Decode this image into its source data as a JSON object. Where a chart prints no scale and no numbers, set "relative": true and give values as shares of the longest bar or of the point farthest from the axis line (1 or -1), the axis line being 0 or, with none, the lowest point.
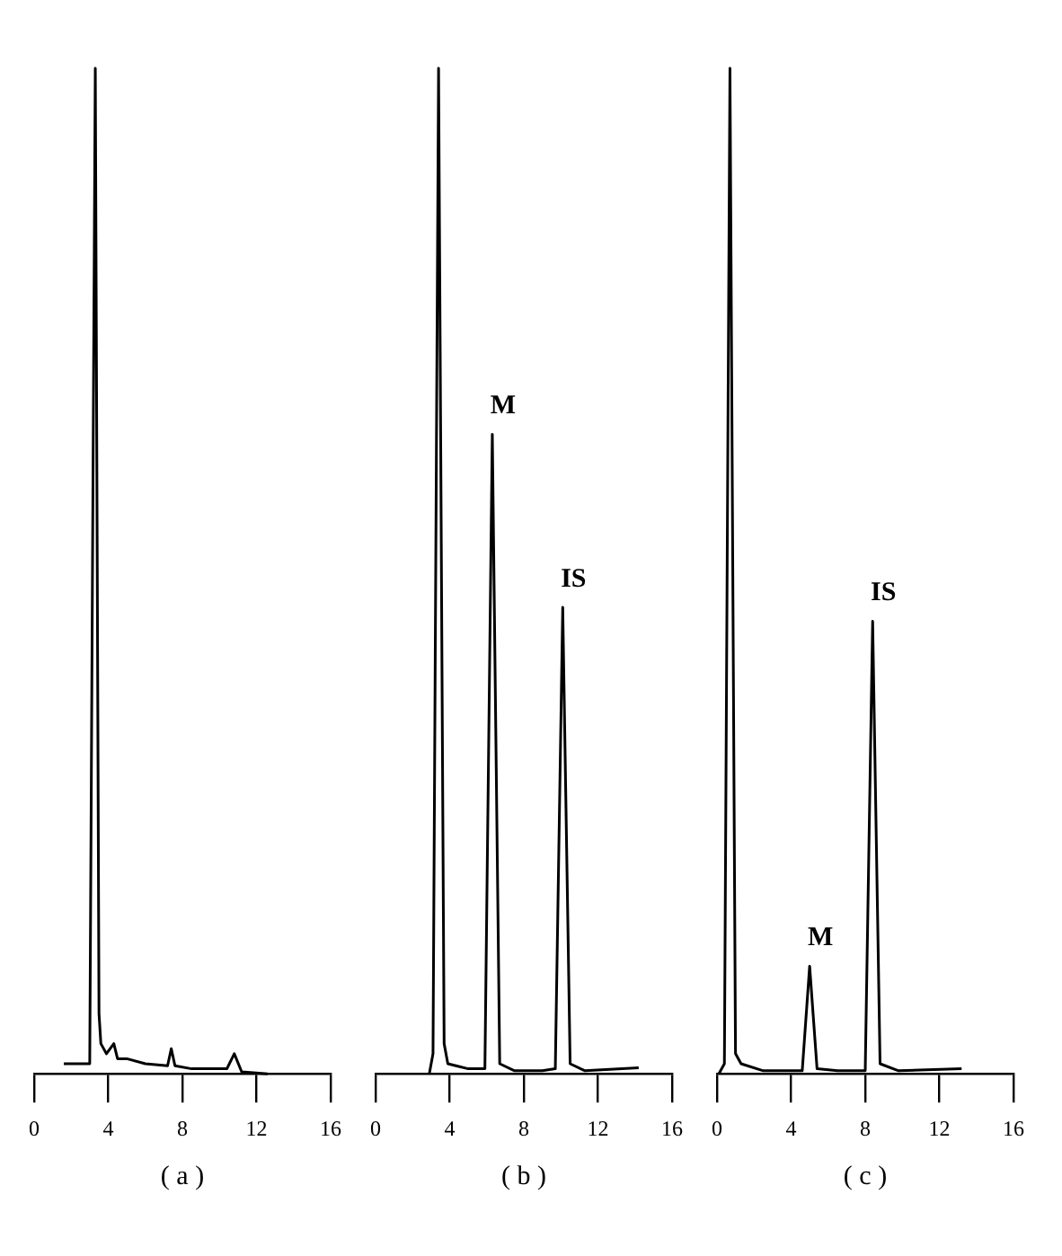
{
  "chart_data": [
    {
      "type": "line",
      "relative": true,
      "xlabel": "( a )",
      "xlim": [
        0,
        16
      ],
      "xticks": [
        0,
        4,
        8,
        12,
        16
      ],
      "grid": false,
      "legend": false,
      "marker": "none",
      "series": [
        {
          "color": "#000000",
          "x": [
            1.6,
            3.0,
            3.3,
            3.5,
            3.6,
            3.9,
            4.3,
            4.5,
            5.0,
            6.0,
            7.2,
            7.4,
            7.6,
            8.5,
            10.4,
            10.8,
            11.2,
            12.6
          ],
          "values": [
            0.01,
            0.01,
            1,
            0.06,
            0.03,
            0.02,
            0.03,
            0.015,
            0.015,
            0.01,
            0.008,
            0.025,
            0.008,
            0.005,
            0.005,
            0.02,
            0.002,
            0
          ]
        }
      ]
    },
    {
      "type": "line",
      "relative": true,
      "xlabel": "( b )",
      "xlim": [
        0,
        16
      ],
      "xticks": [
        0,
        4,
        8,
        12,
        16
      ],
      "grid": false,
      "legend": false,
      "marker": "none",
      "series": [
        {
          "color": "#000000",
          "x": [
            2.9,
            3.1,
            3.4,
            3.7,
            3.9,
            5.0,
            5.9,
            6.3,
            6.7,
            7.5,
            9.0,
            9.7,
            10.1,
            10.5,
            11.3,
            14.2
          ],
          "values": [
            0,
            0.02,
            1,
            0.03,
            0.01,
            0.005,
            0.005,
            0.636,
            0.01,
            0.003,
            0.003,
            0.005,
            0.464,
            0.01,
            0.003,
            0.006
          ]
        }
      ],
      "annotations": [
        {
          "text": "M",
          "x": 6.3,
          "y": 0.636
        },
        {
          "text": "IS",
          "x": 10.1,
          "y": 0.464
        }
      ]
    },
    {
      "type": "line",
      "relative": true,
      "xlabel": "( c )",
      "xlim": [
        0,
        16
      ],
      "xticks": [
        0,
        4,
        8,
        12,
        16
      ],
      "grid": false,
      "legend": false,
      "marker": "none",
      "series": [
        {
          "color": "#000000",
          "x": [
            0.1,
            0.4,
            0.7,
            1.0,
            1.3,
            2.5,
            4.6,
            5.0,
            5.4,
            6.5,
            8.0,
            8.4,
            8.8,
            9.8,
            13.2
          ],
          "values": [
            0,
            0.01,
            1,
            0.02,
            0.01,
            0.003,
            0.003,
            0.107,
            0.005,
            0.003,
            0.003,
            0.45,
            0.01,
            0.003,
            0.005
          ]
        }
      ],
      "annotations": [
        {
          "text": "M",
          "x": 5.0,
          "y": 0.107
        },
        {
          "text": "IS",
          "x": 8.4,
          "y": 0.45
        }
      ]
    }
  ]
}
